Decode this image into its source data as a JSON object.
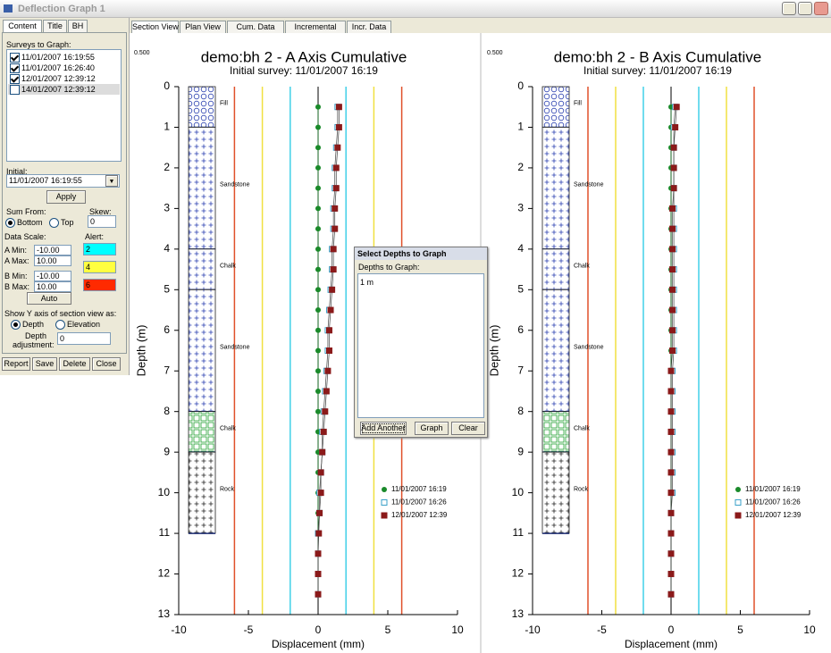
{
  "window": {
    "title": "Deflection Graph 1"
  },
  "left_panel": {
    "tabs": [
      "Content",
      "Title",
      "BH"
    ],
    "surveys_label": "Surveys to Graph:",
    "surveys": [
      {
        "label": "11/01/2007 16:19:55",
        "checked": true
      },
      {
        "label": "11/01/2007 16:26:40",
        "checked": true
      },
      {
        "label": "12/01/2007 12:39:12",
        "checked": true
      },
      {
        "label": "14/01/2007 12:39:12",
        "checked": false
      }
    ],
    "initial_label": "Initial:",
    "initial_value": "11/01/2007 16:19:55",
    "apply": "Apply",
    "sum_from_label": "Sum From:",
    "sum_options": [
      "Bottom",
      "Top"
    ],
    "sum_selected": 0,
    "skew_label": "Skew:",
    "skew_value": "0",
    "data_scale_label": "Data Scale:",
    "scale_fields": [
      {
        "label": "A Min:",
        "value": "-10.00"
      },
      {
        "label": "A Max:",
        "value": "10.00"
      },
      {
        "label": "B Min:",
        "value": "-10.00"
      },
      {
        "label": "B Max:",
        "value": "10.00"
      }
    ],
    "auto": "Auto",
    "alert_label": "Alert:",
    "alerts": [
      {
        "value": "2",
        "color": "#00ffff"
      },
      {
        "value": "4",
        "color": "#ffff40"
      },
      {
        "value": "6",
        "color": "#ff2a00"
      }
    ],
    "yaxis_label": "Show Y axis of section view as:",
    "yaxis_options": [
      "Depth",
      "Elevation"
    ],
    "yaxis_selected": 0,
    "depth_adjust_label": [
      "Depth",
      "adjustment:"
    ],
    "depth_adjust_value": "0",
    "buttons": [
      "Report",
      "Save",
      "Delete",
      "Close"
    ]
  },
  "tabs": [
    "Section View",
    "Plan View",
    "Cum. Data",
    "Incremental",
    "Incr. Data"
  ],
  "charts": [
    {
      "type": "line",
      "corner_label": "0.500",
      "title": "demo:bh 2 - A Axis Cumulative",
      "subtitle": "Initial survey: 11/01/2007 16:19",
      "ylabel": "Depth (m)",
      "xlabel": "Displacement (mm)",
      "xlim": [
        -10,
        10
      ],
      "xticks": [
        -10,
        -5,
        0,
        5,
        10
      ],
      "ylim": [
        0,
        13
      ],
      "yticks": [
        0,
        1,
        2,
        3,
        4,
        5,
        6,
        7,
        8,
        9,
        10,
        11,
        12,
        13
      ],
      "y_inverted": true,
      "alert_lines": [
        {
          "value": -6,
          "color": "#e0502a"
        },
        {
          "value": -4,
          "color": "#f0e040"
        },
        {
          "value": -2,
          "color": "#40d0e8"
        },
        {
          "value": 2,
          "color": "#40d0e8"
        },
        {
          "value": 4,
          "color": "#f0e040"
        },
        {
          "value": 6,
          "color": "#e0502a"
        }
      ],
      "strata": [
        {
          "name": "Fill",
          "top": 0,
          "bottom": 1,
          "pattern": "circles"
        },
        {
          "name": "Sandstone",
          "top": 1,
          "bottom": 4,
          "pattern": "cross-blue"
        },
        {
          "name": "Chalk",
          "top": 4,
          "bottom": 5,
          "pattern": "cross-blue"
        },
        {
          "name": "Sandstone",
          "top": 5,
          "bottom": 8,
          "pattern": "cross-blue"
        },
        {
          "name": "Chalk",
          "top": 8,
          "bottom": 9,
          "pattern": "squares"
        },
        {
          "name": "Rock",
          "top": 9,
          "bottom": 11,
          "pattern": "cross-black"
        }
      ],
      "depths": [
        0.5,
        1,
        1.5,
        2,
        2.5,
        3,
        3.5,
        4,
        4.5,
        5,
        5.5,
        6,
        6.5,
        7,
        7.5,
        8,
        8.5,
        9,
        9.5,
        10,
        10.5,
        11,
        11.5,
        12,
        12.5
      ],
      "series": [
        {
          "name": "11/01/2007 16:19",
          "color": "#1a8a2a",
          "marker": "circle",
          "values": [
            0,
            0,
            0,
            0,
            0,
            0,
            0,
            0,
            0,
            0,
            0,
            0,
            0,
            0,
            0,
            0,
            0,
            0,
            0,
            0,
            0,
            0,
            0,
            0,
            0
          ]
        },
        {
          "name": "11/01/2007 16:26",
          "color": "#3aa0c8",
          "marker": "open-square",
          "values": [
            1.4,
            1.4,
            1.3,
            1.2,
            1.2,
            1.1,
            1.1,
            1.0,
            1.0,
            0.9,
            0.8,
            0.7,
            0.7,
            0.6,
            0.5,
            0.4,
            0.3,
            0.3,
            0.2,
            0.1,
            0.1,
            0,
            0,
            0,
            0
          ]
        },
        {
          "name": "12/01/2007 12:39",
          "color": "#8b1a1a",
          "marker": "square",
          "values": [
            1.5,
            1.5,
            1.4,
            1.3,
            1.3,
            1.2,
            1.2,
            1.1,
            1.1,
            1.0,
            0.9,
            0.8,
            0.8,
            0.7,
            0.6,
            0.5,
            0.4,
            0.3,
            0.2,
            0.2,
            0.1,
            0.05,
            0,
            0,
            0
          ]
        }
      ]
    },
    {
      "type": "line",
      "corner_label": "0.500",
      "title": "demo:bh 2 - B Axis Cumulative",
      "subtitle": "Initial survey: 11/01/2007 16:19",
      "ylabel": "Depth (m)",
      "xlabel": "Displacement (mm)",
      "xlim": [
        -10,
        10
      ],
      "xticks": [
        -10,
        -5,
        0,
        5,
        10
      ],
      "ylim": [
        0,
        13
      ],
      "yticks": [
        0,
        1,
        2,
        3,
        4,
        5,
        6,
        7,
        8,
        9,
        10,
        11,
        12,
        13
      ],
      "y_inverted": true,
      "alert_lines": [
        {
          "value": -6,
          "color": "#e0502a"
        },
        {
          "value": -4,
          "color": "#f0e040"
        },
        {
          "value": -2,
          "color": "#40d0e8"
        },
        {
          "value": 2,
          "color": "#40d0e8"
        },
        {
          "value": 4,
          "color": "#f0e040"
        },
        {
          "value": 6,
          "color": "#e0502a"
        }
      ],
      "strata": [
        {
          "name": "Fill",
          "top": 0,
          "bottom": 1,
          "pattern": "circles"
        },
        {
          "name": "Sandstone",
          "top": 1,
          "bottom": 4,
          "pattern": "cross-blue"
        },
        {
          "name": "Chalk",
          "top": 4,
          "bottom": 5,
          "pattern": "cross-blue"
        },
        {
          "name": "Sandstone",
          "top": 5,
          "bottom": 8,
          "pattern": "cross-blue"
        },
        {
          "name": "Chalk",
          "top": 8,
          "bottom": 9,
          "pattern": "squares"
        },
        {
          "name": "Rock",
          "top": 9,
          "bottom": 11,
          "pattern": "cross-black"
        }
      ],
      "depths": [
        0.5,
        1,
        1.5,
        2,
        2.5,
        3,
        3.5,
        4,
        4.5,
        5,
        5.5,
        6,
        6.5,
        7,
        7.5,
        8,
        8.5,
        9,
        9.5,
        10,
        10.5,
        11,
        11.5,
        12,
        12.5
      ],
      "series": [
        {
          "name": "11/01/2007 16:19",
          "color": "#1a8a2a",
          "marker": "circle",
          "values": [
            0,
            0,
            0,
            0,
            0,
            0,
            0,
            0,
            0,
            0,
            0,
            0,
            0,
            0,
            0,
            0,
            0,
            0,
            0,
            0,
            0,
            0,
            0,
            0,
            0
          ]
        },
        {
          "name": "11/01/2007 16:26",
          "color": "#3aa0c8",
          "marker": "open-square",
          "values": [
            0.3,
            0.2,
            0.2,
            0.2,
            0.2,
            0.2,
            0.2,
            0.2,
            0.2,
            0.2,
            0.2,
            0.2,
            0.2,
            0.1,
            0.1,
            0.1,
            0.1,
            0.1,
            0.1,
            0.1,
            0,
            0,
            0,
            0,
            0
          ]
        },
        {
          "name": "12/01/2007 12:39",
          "color": "#8b1a1a",
          "marker": "square",
          "values": [
            0.4,
            0.3,
            0.2,
            0.2,
            0.2,
            0.1,
            0.1,
            0.1,
            0.1,
            0.1,
            0.1,
            0.1,
            0.1,
            0,
            0,
            0,
            0,
            0,
            0,
            0,
            0,
            0,
            0,
            0,
            0
          ]
        }
      ]
    }
  ],
  "dialog": {
    "title": "Select Depths to Graph",
    "label": "Depths to Graph:",
    "items": [
      "1 m"
    ],
    "buttons": [
      "Add Another",
      "Graph",
      "Clear"
    ]
  }
}
